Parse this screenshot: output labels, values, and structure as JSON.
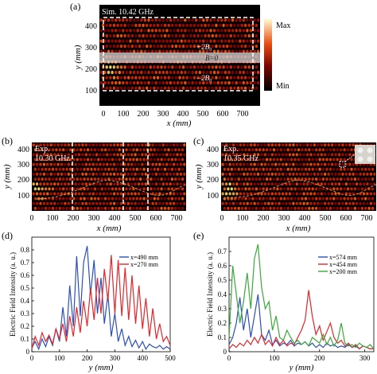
{
  "figure": {
    "panel_a": {
      "letter": "(a)",
      "label": "Sim. 10.42 GHz",
      "annotations": {
        "upper": "+2B₀",
        "middle": "B=0",
        "lower": "−2B₀"
      },
      "xlabel": "x (mm)",
      "ylabel": "y (mm)",
      "xticks": [
        "0",
        "100",
        "200",
        "300",
        "400",
        "500",
        "600",
        "700"
      ],
      "yticks": [
        "100",
        "200",
        "300",
        "400"
      ],
      "colorbar": {
        "max_label": "Max",
        "min_label": "Min"
      }
    },
    "panel_b": {
      "letter": "(b)",
      "label_line1": "Exp.",
      "label_line2": "10.30 GHz",
      "xlabel": "x (mm)",
      "ylabel": "y (mm)",
      "xticks": [
        "0",
        "100",
        "200",
        "300",
        "400",
        "500",
        "600",
        "700"
      ],
      "yticks": [
        "100",
        "200",
        "300",
        "400"
      ]
    },
    "panel_c": {
      "letter": "(c)",
      "label_line1": "Exp.",
      "label_line2": "10.35 GHz",
      "xlabel": "x (mm)",
      "ylabel": "y (mm)",
      "xticks": [
        "0",
        "100",
        "200",
        "300",
        "400",
        "500",
        "600",
        "700"
      ],
      "yticks": [
        "100",
        "200",
        "300",
        "400"
      ]
    }
  },
  "chart_data": [
    {
      "panel": "(a)",
      "type": "heatmap",
      "xlabel": "x (mm)",
      "ylabel": "y (mm)",
      "xlim": [
        0,
        750
      ],
      "ylim": [
        0,
        480
      ],
      "colorbar": [
        "Min",
        "Max"
      ],
      "dashed_boxes": [
        {
          "x": [
            0,
            740
          ],
          "y": [
            90,
            430
          ]
        }
      ],
      "shaded_band_y": [
        245,
        285
      ],
      "hotspot": {
        "x": 50,
        "y": 200
      }
    },
    {
      "panel": "(b)",
      "type": "heatmap",
      "xlabel": "x (mm)",
      "ylabel": "y (mm)",
      "xlim": [
        0,
        750
      ],
      "ylim": [
        0,
        440
      ],
      "dashed_vlines_x": [
        200,
        450,
        570
      ],
      "hotspot": {
        "x": 40,
        "y": 180
      }
    },
    {
      "panel": "(c)",
      "type": "heatmap",
      "xlabel": "x (mm)",
      "ylabel": "y (mm)",
      "xlim": [
        0,
        750
      ],
      "ylim": [
        0,
        440
      ],
      "hotspot": {
        "x": 40,
        "y": 180
      }
    },
    {
      "panel": "(d)",
      "type": "line",
      "xlabel": "y (mm)",
      "ylabel": "Electric Field Intensity (a. u.)",
      "xlim": [
        0,
        500
      ],
      "ylim": [
        0,
        0.9
      ],
      "xticks": [
        "0",
        "100",
        "200",
        "300",
        "400",
        "500"
      ],
      "yticks": [
        "0",
        "0.1",
        "0.2",
        "0.3",
        "0.4",
        "0.5",
        "0.6",
        "0.7",
        "0.8"
      ],
      "series": [
        {
          "name": "x=490 mm",
          "color": "#2b4fb8",
          "x": [
            0,
            12,
            25,
            37,
            50,
            62,
            75,
            87,
            100,
            112,
            125,
            137,
            150,
            162,
            175,
            187,
            200,
            212,
            225,
            237,
            250,
            262,
            275,
            287,
            300,
            312,
            325,
            337,
            350,
            362,
            375,
            387,
            400,
            412,
            425,
            437,
            450,
            462,
            475,
            487,
            500
          ],
          "y": [
            0.03,
            0.08,
            0.02,
            0.1,
            0.04,
            0.12,
            0.05,
            0.18,
            0.08,
            0.35,
            0.12,
            0.52,
            0.2,
            0.75,
            0.28,
            0.7,
            0.83,
            0.45,
            0.72,
            0.3,
            0.58,
            0.22,
            0.45,
            0.12,
            0.3,
            0.08,
            0.18,
            0.05,
            0.12,
            0.04,
            0.09,
            0.03,
            0.08,
            0.02,
            0.06,
            0.04,
            0.03,
            0.05,
            0.02,
            0.04,
            0.02
          ]
        },
        {
          "name": "x=270 mm",
          "color": "#e0262a",
          "x": [
            0,
            12,
            25,
            37,
            50,
            62,
            75,
            87,
            100,
            112,
            125,
            137,
            150,
            162,
            175,
            187,
            200,
            212,
            225,
            237,
            250,
            262,
            275,
            287,
            300,
            312,
            325,
            337,
            350,
            362,
            375,
            387,
            400,
            412,
            425,
            437,
            450,
            462,
            475,
            487,
            500
          ],
          "y": [
            0.02,
            0.12,
            0.05,
            0.15,
            0.08,
            0.13,
            0.06,
            0.18,
            0.1,
            0.22,
            0.08,
            0.28,
            0.12,
            0.35,
            0.15,
            0.4,
            0.2,
            0.5,
            0.25,
            0.58,
            0.3,
            0.65,
            0.4,
            0.76,
            0.3,
            0.72,
            0.28,
            0.66,
            0.25,
            0.6,
            0.22,
            0.52,
            0.18,
            0.42,
            0.12,
            0.34,
            0.1,
            0.22,
            0.08,
            0.12,
            0.05
          ]
        }
      ]
    },
    {
      "panel": "(e)",
      "type": "line",
      "xlabel": "y (mm)",
      "ylabel": "Electric Field Intensity (a. u.)",
      "xlim": [
        0,
        320
      ],
      "ylim": [
        0,
        0.8
      ],
      "xticks": [
        "0",
        "100",
        "200",
        "300"
      ],
      "yticks": [
        "0",
        "0.1",
        "0.2",
        "0.3",
        "0.4",
        "0.5",
        "0.6",
        "0.7"
      ],
      "series": [
        {
          "name": "x=574 mm",
          "color": "#2b4fb8",
          "x": [
            0,
            8,
            16,
            24,
            32,
            40,
            48,
            56,
            64,
            72,
            80,
            88,
            96,
            104,
            112,
            120,
            128,
            136,
            144,
            152,
            160,
            168,
            176,
            184,
            192,
            200,
            208,
            216,
            224,
            232,
            240,
            248,
            256,
            264,
            272,
            280,
            288,
            296,
            304,
            312,
            320
          ],
          "y": [
            0.05,
            0.1,
            0.2,
            0.38,
            0.15,
            0.3,
            0.1,
            0.25,
            0.4,
            0.12,
            0.08,
            0.15,
            0.05,
            0.08,
            0.04,
            0.06,
            0.05,
            0.08,
            0.04,
            0.06,
            0.05,
            0.07,
            0.04,
            0.06,
            0.03,
            0.05,
            0.03,
            0.06,
            0.04,
            0.05,
            0.03,
            0.04,
            0.03,
            0.05,
            0.03,
            0.04,
            0.02,
            0.04,
            0.03,
            0.02,
            0.02
          ]
        },
        {
          "name": "x=454 mm",
          "color": "#e0262a",
          "x": [
            0,
            8,
            16,
            24,
            32,
            40,
            48,
            56,
            64,
            72,
            80,
            88,
            96,
            104,
            112,
            120,
            128,
            136,
            144,
            152,
            160,
            168,
            176,
            184,
            192,
            200,
            208,
            216,
            224,
            232,
            240,
            248,
            256,
            264,
            272,
            280,
            288,
            296,
            304,
            312,
            320
          ],
          "y": [
            0.02,
            0.05,
            0.03,
            0.06,
            0.04,
            0.08,
            0.05,
            0.1,
            0.06,
            0.12,
            0.05,
            0.08,
            0.04,
            0.1,
            0.05,
            0.08,
            0.04,
            0.06,
            0.05,
            0.1,
            0.15,
            0.22,
            0.43,
            0.25,
            0.12,
            0.18,
            0.08,
            0.14,
            0.2,
            0.1,
            0.06,
            0.08,
            0.04,
            0.06,
            0.03,
            0.05,
            0.02,
            0.04,
            0.03,
            0.02,
            0.02
          ]
        },
        {
          "name": "x=200 mm",
          "color": "#3aa83a",
          "x": [
            0,
            8,
            16,
            24,
            32,
            40,
            48,
            56,
            64,
            72,
            80,
            88,
            96,
            104,
            112,
            120,
            128,
            136,
            144,
            152,
            160,
            168,
            176,
            184,
            192,
            200,
            208,
            216,
            224,
            232,
            240,
            248,
            256,
            264,
            272,
            280,
            288,
            296,
            304,
            312,
            320
          ],
          "y": [
            0.1,
            0.6,
            0.4,
            0.2,
            0.35,
            0.55,
            0.3,
            0.65,
            0.75,
            0.45,
            0.3,
            0.35,
            0.15,
            0.25,
            0.1,
            0.08,
            0.15,
            0.1,
            0.06,
            0.08,
            0.05,
            0.07,
            0.04,
            0.1,
            0.08,
            0.06,
            0.12,
            0.05,
            0.1,
            0.04,
            0.08,
            0.2,
            0.06,
            0.04,
            0.05,
            0.03,
            0.06,
            0.04,
            0.03,
            0.05,
            0.02
          ]
        }
      ]
    }
  ]
}
